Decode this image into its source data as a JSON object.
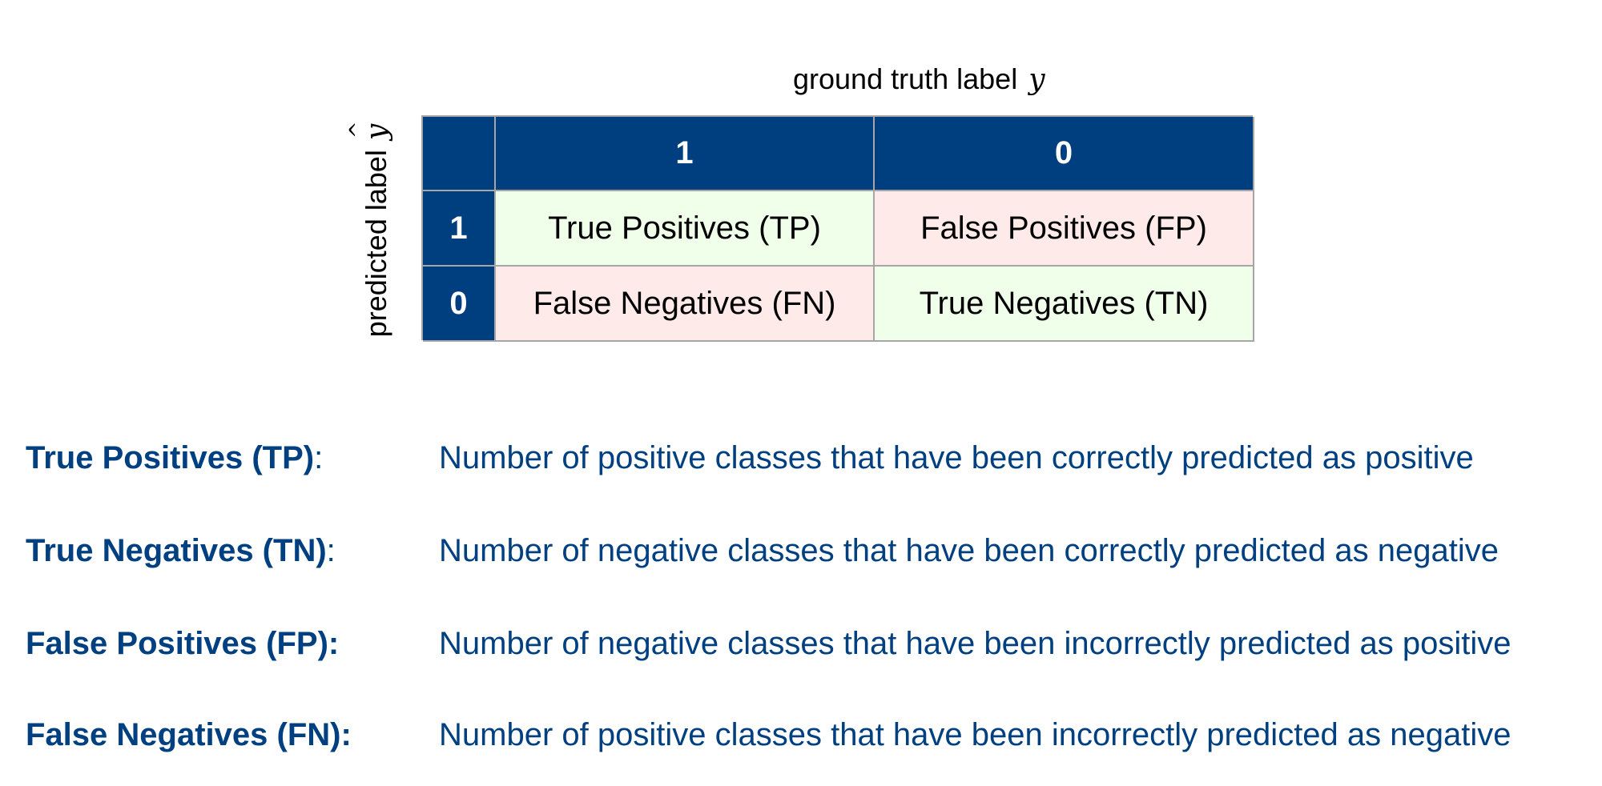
{
  "matrix": {
    "top_axis_label": "ground truth label",
    "top_axis_symbol": "y",
    "side_axis_label": "predicted label",
    "side_axis_symbol": "y",
    "column_headers": [
      "1",
      "0"
    ],
    "row_headers": [
      "1",
      "0"
    ],
    "cells": [
      [
        "True Positives (TP)",
        "False Positives (FP)"
      ],
      [
        "False Negatives (FN)",
        "True Negatives (TN)"
      ]
    ],
    "colors": {
      "header": "#003f7f",
      "correct": "#efffe9",
      "incorrect": "#ffeaea",
      "border": "#a6a6a6"
    }
  },
  "definitions": [
    {
      "term": "True Positives (TP)",
      "term_colon": ":",
      "colon_bold": false,
      "description": "Number of positive classes that have been correctly predicted as positive"
    },
    {
      "term": "True Negatives (TN)",
      "term_colon": ":",
      "colon_bold": false,
      "description": "Number of negative classes that have been correctly predicted as negative"
    },
    {
      "term": "False Positives (FP):",
      "term_colon": "",
      "colon_bold": true,
      "description": "Number of negative classes that have been incorrectly predicted as positive"
    },
    {
      "term": "False Negatives (FN):",
      "term_colon": "",
      "colon_bold": true,
      "description": "Number of positive classes that have been incorrectly predicted as negative"
    }
  ],
  "text_color": "#004080"
}
